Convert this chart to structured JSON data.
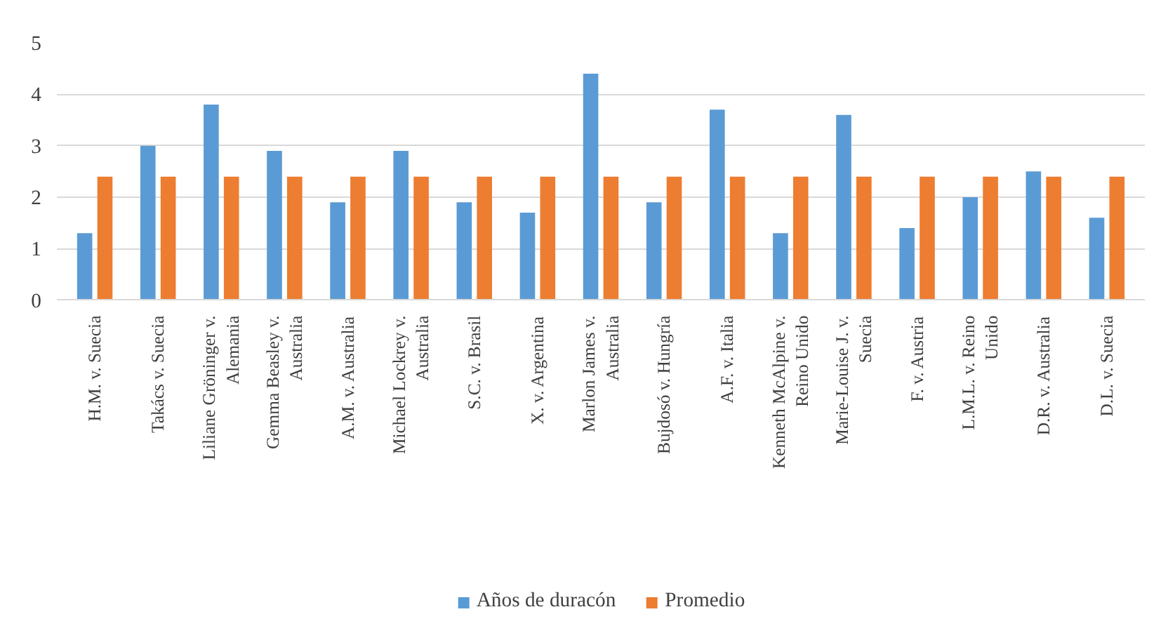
{
  "chart_data": {
    "type": "bar",
    "categories": [
      "H.M. v. Suecia",
      "Takács v. Suecia",
      "Liliane Gröninger v.\nAlemania",
      "Gemma Beasley v.\nAustralia",
      "A.M. v. Australia",
      "Michael Lockrey v.\nAustralia",
      "S.C. v. Brasil",
      "X. v. Argentina",
      "Marlon James v.\nAustralia",
      "Bujdosó v. Hungría",
      "A.F. v. Italia",
      "Kenneth McAlpine v.\nReino Unido",
      "Marie-Louise J. v.\nSuecia",
      "F. v. Austria",
      "L.M.L. v. Reino\nUnido",
      "D.R. v. Australia",
      "D.L. v. Suecia"
    ],
    "series": [
      {
        "name": "Años de duracón",
        "color": "#5b9bd5",
        "values": [
          1.3,
          3.0,
          3.8,
          2.9,
          1.9,
          2.9,
          1.9,
          1.7,
          4.4,
          1.9,
          3.7,
          1.3,
          3.6,
          1.4,
          2.0,
          2.5,
          1.6
        ]
      },
      {
        "name": "Promedio",
        "color": "#ed7d31",
        "values": [
          2.4,
          2.4,
          2.4,
          2.4,
          2.4,
          2.4,
          2.4,
          2.4,
          2.4,
          2.4,
          2.4,
          2.4,
          2.4,
          2.4,
          2.4,
          2.4,
          2.4
        ]
      }
    ],
    "ylim": [
      0,
      5
    ],
    "yticks": [
      0,
      1,
      2,
      3,
      4,
      5
    ],
    "grid": "y",
    "legend": "bottom"
  }
}
